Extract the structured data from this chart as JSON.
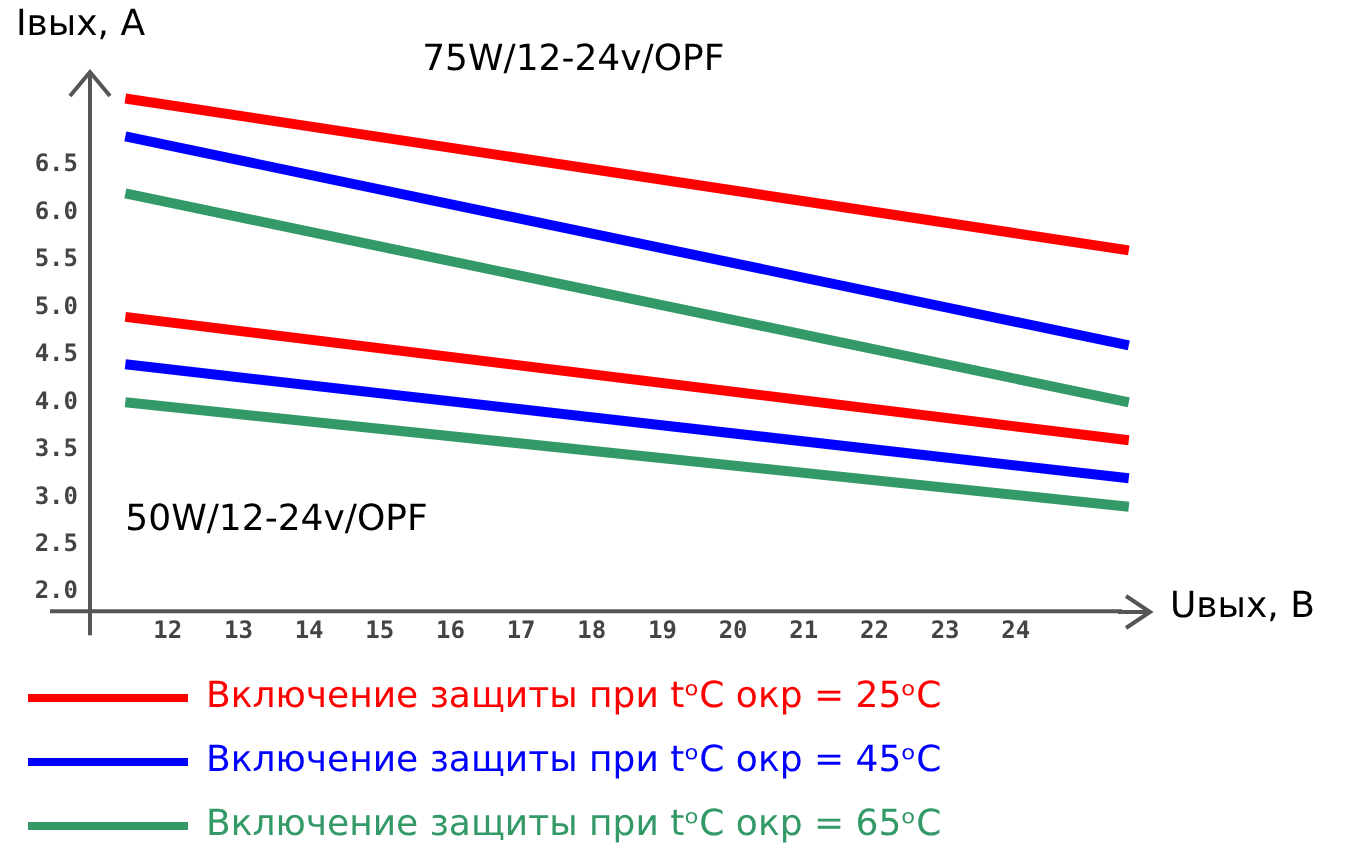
{
  "chart_data": {
    "type": "line",
    "xlabel": "Uвых, B",
    "ylabel": "Iвых, A",
    "annotations": [
      "75W/12-24v/OPF",
      "50W/12-24v/OPF"
    ],
    "xlim": [
      10.9,
      25.9
    ],
    "ylim": [
      1.8,
      7.5
    ],
    "xticks": [
      12,
      13,
      14,
      15,
      16,
      17,
      18,
      19,
      20,
      21,
      22,
      23,
      24
    ],
    "yticks": [
      {
        "value": 2,
        "label": "2.0"
      },
      {
        "value": 2.5,
        "label": "2.5"
      },
      {
        "value": 3,
        "label": "3.0"
      },
      {
        "value": 3.5,
        "label": "3.5"
      },
      {
        "value": 4,
        "label": "4.0"
      },
      {
        "value": 4.5,
        "label": "4.5"
      },
      {
        "value": 5,
        "label": "5.0"
      },
      {
        "value": 5.5,
        "label": "5.5"
      },
      {
        "value": 6,
        "label": "6.0"
      },
      {
        "value": 6.5,
        "label": "6.5"
      }
    ],
    "x": [
      11.4,
      25.6
    ],
    "grid": false,
    "legend": "bottom",
    "marker": "none",
    "line_style": "solid",
    "series": [
      {
        "name": "Включение защиты при tᵒC окр = 25ᵒC",
        "color": "#ff0000",
        "values": [
          7.2,
          5.6
        ]
      },
      {
        "name": "Включение защиты при tᵒC окр = 45ᵒC",
        "color": "#0000ff",
        "values": [
          6.8,
          4.6
        ]
      },
      {
        "name": "Включение защиты при tᵒC окр = 65ᵒC",
        "color": "#339966",
        "values": [
          6.2,
          4.0
        ]
      },
      {
        "color": "#ff0000",
        "values": [
          4.9,
          3.6
        ]
      },
      {
        "color": "#0000ff",
        "values": [
          4.4,
          3.2
        ]
      },
      {
        "color": "#339966",
        "values": [
          4.0,
          2.9
        ]
      }
    ]
  }
}
